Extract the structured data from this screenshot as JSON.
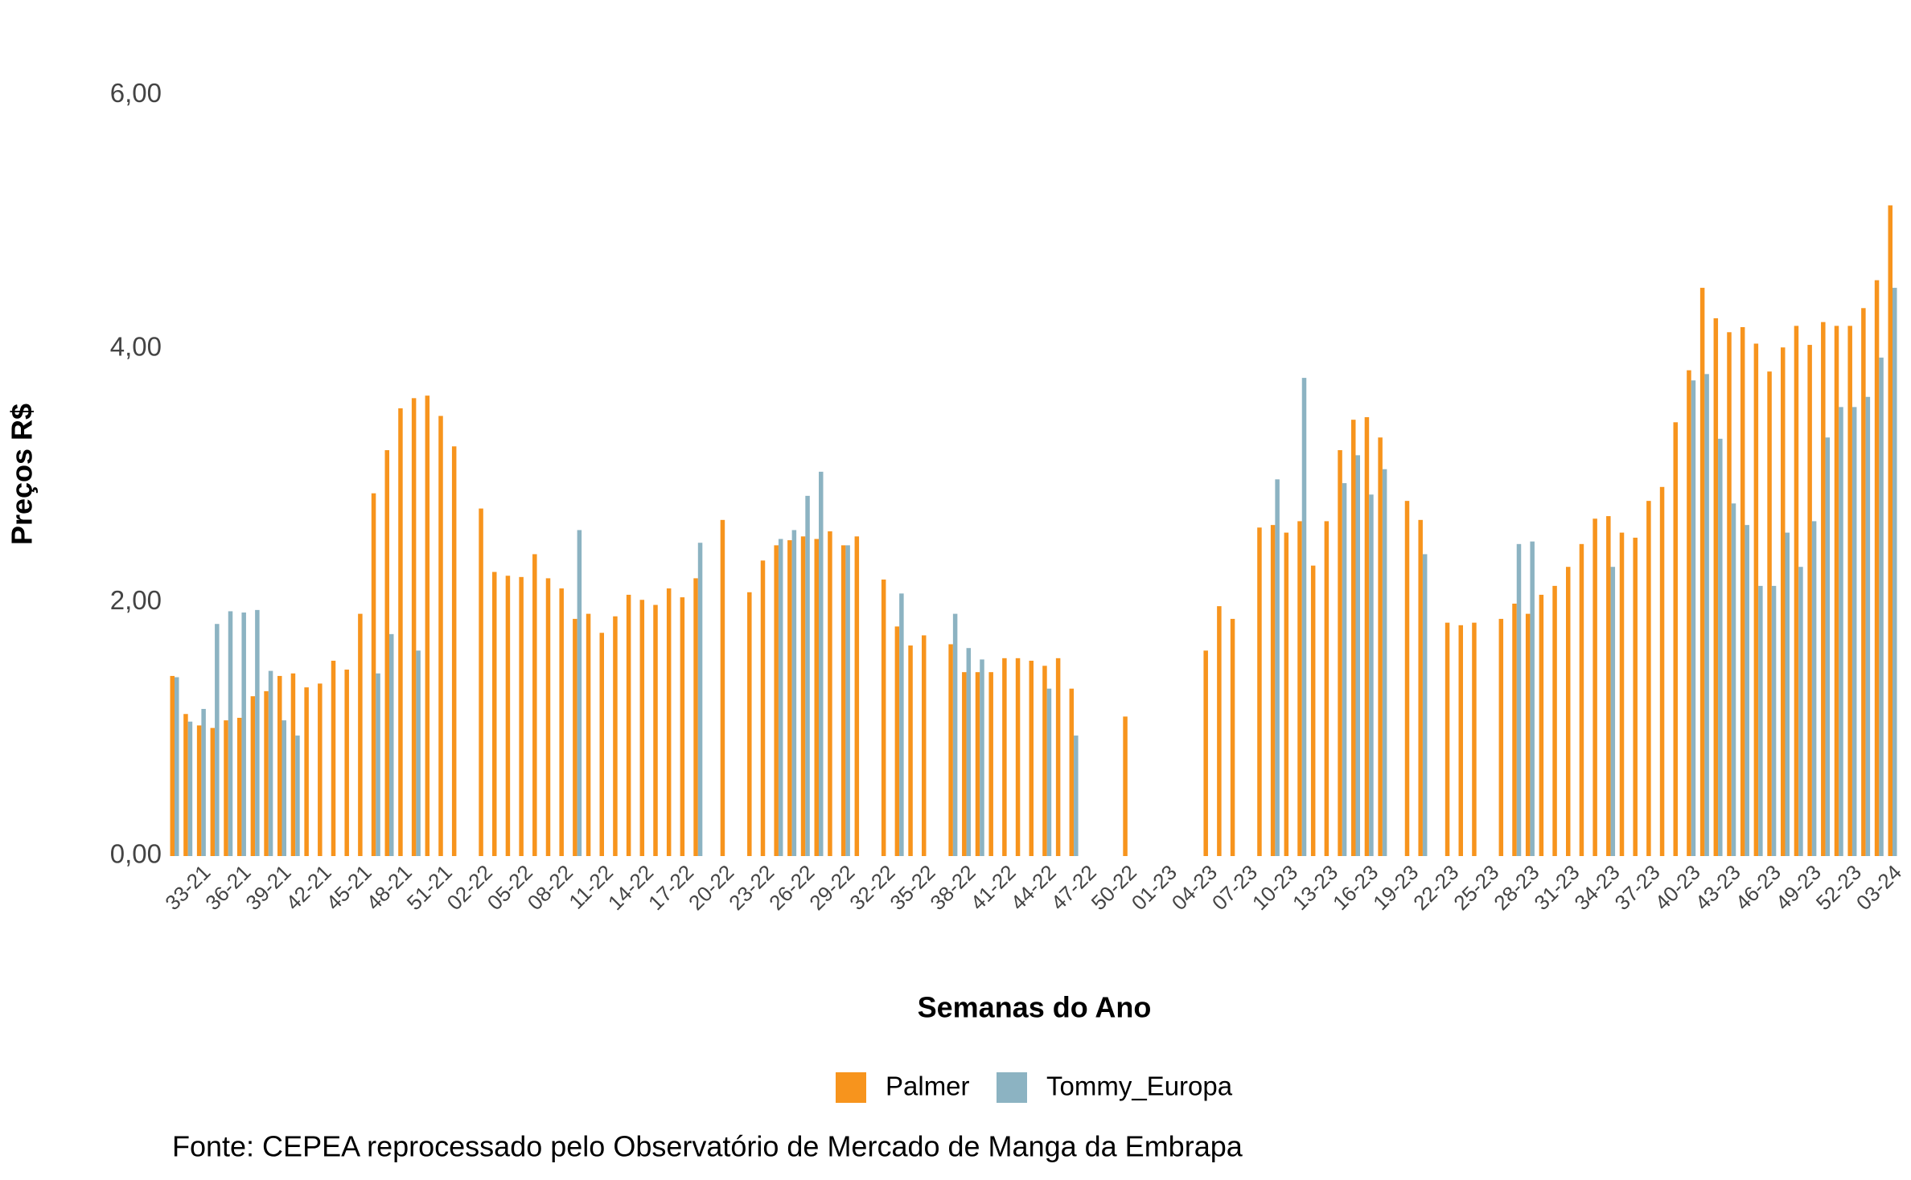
{
  "chart_data": {
    "type": "bar",
    "x_label": "Semanas do Ano",
    "y_label": "Preços R$",
    "caption": "Fonte: CEPEA reprocessado pelo Observatório de Mercado de Manga da Embrapa",
    "categories": [
      null,
      null,
      "33-21",
      null,
      null,
      "36-21",
      null,
      null,
      "39-21",
      null,
      null,
      "42-21",
      null,
      null,
      "45-21",
      null,
      null,
      "48-21",
      null,
      null,
      "51-21",
      null,
      null,
      "02-22",
      null,
      null,
      "05-22",
      null,
      null,
      "08-22",
      null,
      null,
      "11-22",
      null,
      null,
      "14-22",
      null,
      null,
      "17-22",
      null,
      null,
      "20-22",
      null,
      null,
      "23-22",
      null,
      null,
      "26-22",
      null,
      null,
      "29-22",
      null,
      null,
      "32-22",
      null,
      null,
      "35-22",
      null,
      null,
      "38-22",
      null,
      null,
      "41-22",
      null,
      null,
      "44-22",
      null,
      null,
      "47-22",
      null,
      null,
      "50-22",
      null,
      null,
      "01-23",
      null,
      null,
      "04-23",
      null,
      null,
      "07-23",
      null,
      null,
      "10-23",
      null,
      null,
      "13-23",
      null,
      null,
      "16-23",
      null,
      null,
      "19-23",
      null,
      null,
      "22-23",
      null,
      null,
      "25-23",
      null,
      null,
      "28-23",
      null,
      null,
      "31-23",
      null,
      null,
      "34-23",
      null,
      null,
      "37-23",
      null,
      null,
      "40-23",
      null,
      null,
      "43-23",
      null,
      null,
      "46-23",
      null,
      null,
      "49-23",
      null,
      null,
      "52-23",
      null,
      null,
      "03-24"
    ],
    "series": [
      {
        "name": "Palmer",
        "color": "#F7941D",
        "values": [
          1.42,
          1.12,
          1.03,
          1.01,
          1.07,
          1.09,
          1.26,
          1.3,
          1.42,
          1.44,
          1.33,
          1.36,
          1.54,
          1.47,
          1.91,
          2.86,
          3.2,
          3.53,
          3.61,
          3.63,
          3.47,
          3.23,
          null,
          2.74,
          2.24,
          2.21,
          2.2,
          2.38,
          2.19,
          2.11,
          1.87,
          1.91,
          1.76,
          1.89,
          2.06,
          2.02,
          1.98,
          2.11,
          2.04,
          2.19,
          null,
          2.65,
          null,
          2.08,
          2.33,
          2.45,
          2.49,
          2.52,
          2.5,
          2.56,
          2.45,
          2.52,
          null,
          2.18,
          1.81,
          1.66,
          1.74,
          null,
          1.67,
          1.45,
          1.45,
          1.45,
          1.56,
          1.56,
          1.54,
          1.5,
          1.56,
          1.32,
          null,
          null,
          null,
          1.1,
          null,
          null,
          null,
          null,
          null,
          1.62,
          1.97,
          1.87,
          null,
          2.59,
          2.61,
          2.55,
          2.64,
          2.29,
          2.64,
          3.2,
          3.44,
          3.46,
          3.3,
          null,
          2.8,
          2.65,
          null,
          1.84,
          1.82,
          1.84,
          null,
          1.87,
          1.99,
          1.91,
          2.06,
          2.13,
          2.28,
          2.46,
          2.66,
          2.68,
          2.55,
          2.51,
          2.8,
          2.91,
          3.42,
          3.83,
          4.48,
          4.24,
          4.13,
          4.17,
          4.04,
          3.82,
          4.01,
          4.18,
          4.03,
          4.21,
          4.18,
          4.18,
          4.32,
          4.54,
          5.13
        ]
      },
      {
        "name": "Tommy_Europa",
        "color": "#8CB3C2",
        "values": [
          1.41,
          1.06,
          1.16,
          1.83,
          1.93,
          1.92,
          1.94,
          1.46,
          1.07,
          0.95,
          null,
          null,
          null,
          null,
          null,
          1.44,
          1.75,
          null,
          1.62,
          null,
          null,
          null,
          null,
          null,
          null,
          null,
          null,
          null,
          null,
          null,
          2.57,
          null,
          null,
          null,
          null,
          null,
          null,
          null,
          null,
          2.47,
          null,
          null,
          null,
          null,
          null,
          2.5,
          2.57,
          2.84,
          3.03,
          null,
          2.45,
          null,
          null,
          null,
          2.07,
          null,
          null,
          null,
          1.91,
          1.64,
          1.55,
          null,
          null,
          null,
          null,
          1.32,
          null,
          0.95,
          null,
          null,
          null,
          null,
          null,
          null,
          null,
          null,
          null,
          null,
          null,
          null,
          null,
          null,
          2.97,
          null,
          3.77,
          null,
          null,
          2.94,
          3.16,
          2.85,
          3.05,
          null,
          null,
          2.38,
          null,
          null,
          null,
          null,
          null,
          null,
          2.46,
          2.48,
          null,
          null,
          null,
          null,
          null,
          2.28,
          null,
          null,
          null,
          null,
          null,
          3.75,
          3.8,
          3.29,
          2.78,
          2.61,
          2.13,
          2.13,
          2.55,
          2.28,
          2.64,
          3.3,
          3.54,
          3.54,
          3.62,
          3.93,
          4.48
        ]
      }
    ],
    "ylim": [
      0,
      6.3
    ],
    "yticks": [
      {
        "value": 0,
        "label": "0,00"
      },
      {
        "value": 2,
        "label": "2,00"
      },
      {
        "value": 4,
        "label": "4,00"
      },
      {
        "value": 6,
        "label": "6,00"
      }
    ],
    "legend": "bottom"
  }
}
